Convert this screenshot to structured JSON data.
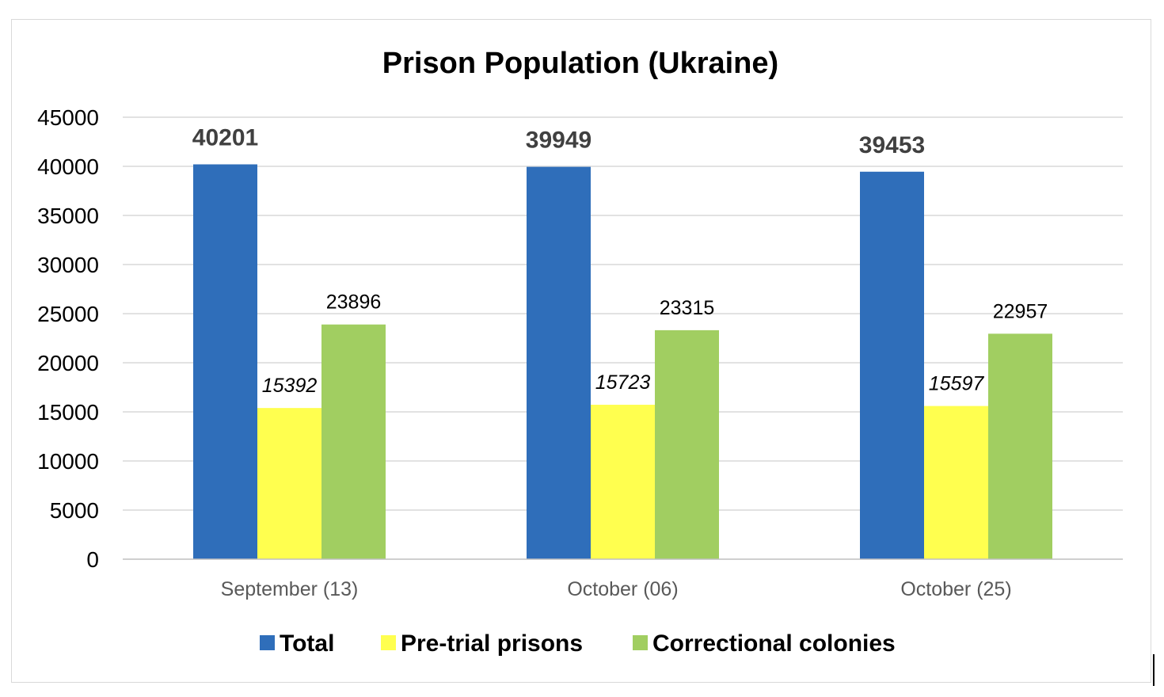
{
  "chart_data": {
    "type": "bar",
    "title": "Prison Population (Ukraine)",
    "categories": [
      "September (13)",
      "October (06)",
      "October  (25)"
    ],
    "series": [
      {
        "name": "Total",
        "color": "#2F6EBA",
        "values": [
          40201,
          39949,
          39453
        ]
      },
      {
        "name": "Pre-trial prisons",
        "color": "#FFFF4F",
        "values": [
          15392,
          15723,
          15597
        ]
      },
      {
        "name": "Correctional colonies",
        "color": "#A1CE61",
        "values": [
          23896,
          23315,
          22957
        ]
      }
    ],
    "ylim": [
      0,
      45000
    ],
    "yticks": [
      "0",
      "5000",
      "10000",
      "15000",
      "20000",
      "25000",
      "30000",
      "35000",
      "40000",
      "45000"
    ],
    "xlabel": "",
    "ylabel": "",
    "grid": true,
    "legend": "bottom"
  }
}
